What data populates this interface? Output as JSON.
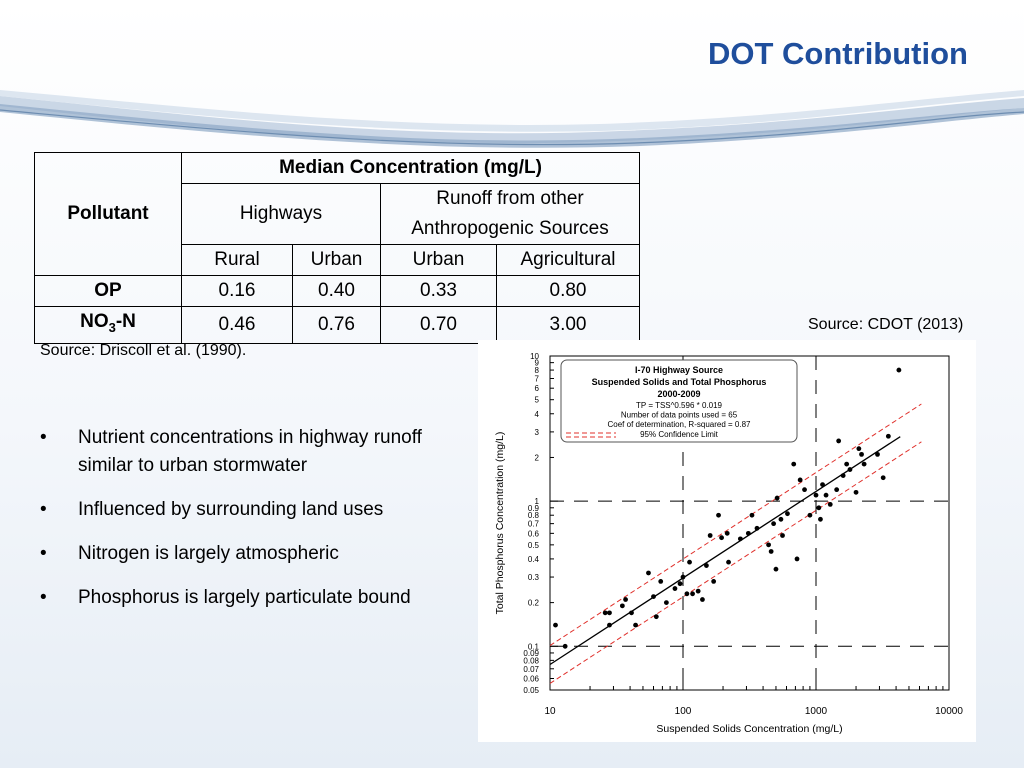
{
  "slide": {
    "title": "DOT Contribution",
    "source_right": "Source: CDOT (2013)",
    "source_left": "Source: Driscoll et al. (1990)."
  },
  "table": {
    "pollutant_header": "Pollutant",
    "median_header": "Median Concentration (mg/L)",
    "highways_header": "Highways",
    "runoff_header_line1": "Runoff from other",
    "runoff_header_line2": "Anthropogenic Sources",
    "sub_headers": [
      "Rural",
      "Urban",
      "Urban",
      "Agricultural"
    ],
    "rows": [
      {
        "pollutant": "OP",
        "values": [
          "0.16",
          "0.40",
          "0.33",
          "0.80"
        ]
      },
      {
        "pollutant_main": "NO",
        "pollutant_sub": "3",
        "pollutant_tail": "-N",
        "values": [
          "0.46",
          "0.76",
          "0.70",
          "3.00"
        ]
      }
    ]
  },
  "bullets": {
    "marker": "•",
    "items": [
      "Nutrient concentrations in highway runoff similar to urban stormwater",
      "Influenced by surrounding land uses",
      "Nitrogen is largely atmospheric",
      "Phosphorus is largely particulate bound"
    ]
  },
  "chart_data": {
    "type": "scatter",
    "title": "I-70 Highway Source",
    "subtitle": "Suspended Solids and Total Phosphorus",
    "period": "2000-2009",
    "legend_lines": [
      "TP = TSS^0.596 * 0.019",
      "Number of data points used = 65",
      "Coef of determination, R-squared = 0.87",
      "95% Confidence Limit"
    ],
    "xlabel": "Suspended Solids Concentration (mg/L)",
    "ylabel": "Total Phosphorus Concentration (mg/L)",
    "x_scale": "log",
    "y_scale": "log",
    "xlim": [
      10,
      10000
    ],
    "ylim": [
      0.05,
      10
    ],
    "x_ticks": [
      "10",
      "100",
      "1000",
      "10000"
    ],
    "y_ticks": [
      {
        "v": 0.05,
        "label": "0.05"
      },
      {
        "v": 0.06,
        "label": "0.06"
      },
      {
        "v": 0.07,
        "label": "0.07"
      },
      {
        "v": 0.08,
        "label": "0.08"
      },
      {
        "v": 0.09,
        "label": "0.09"
      },
      {
        "v": 0.1,
        "label": "0.1"
      },
      {
        "v": 0.2,
        "label": "0.2"
      },
      {
        "v": 0.3,
        "label": "0.3"
      },
      {
        "v": 0.4,
        "label": "0.4"
      },
      {
        "v": 0.5,
        "label": "0.5"
      },
      {
        "v": 0.6,
        "label": "0.6"
      },
      {
        "v": 0.7,
        "label": "0.7"
      },
      {
        "v": 0.8,
        "label": "0.8"
      },
      {
        "v": 0.9,
        "label": "0.9"
      },
      {
        "v": 1,
        "label": "1"
      },
      {
        "v": 2,
        "label": "2"
      },
      {
        "v": 3,
        "label": "3"
      },
      {
        "v": 4,
        "label": "4"
      },
      {
        "v": 5,
        "label": "5"
      },
      {
        "v": 6,
        "label": "6"
      },
      {
        "v": 7,
        "label": "7"
      },
      {
        "v": 8,
        "label": "8"
      },
      {
        "v": 9,
        "label": "9"
      },
      {
        "v": 10,
        "label": "10"
      }
    ],
    "regression": {
      "coef": 0.019,
      "exponent": 0.596
    },
    "confidence_factor": 1.35,
    "points": [
      [
        11,
        0.14
      ],
      [
        13,
        0.1
      ],
      [
        26,
        0.17
      ],
      [
        28,
        0.17
      ],
      [
        28,
        0.14
      ],
      [
        35,
        0.19
      ],
      [
        37,
        0.21
      ],
      [
        41,
        0.17
      ],
      [
        44,
        0.14
      ],
      [
        55,
        0.32
      ],
      [
        60,
        0.22
      ],
      [
        63,
        0.16
      ],
      [
        68,
        0.28
      ],
      [
        75,
        0.2
      ],
      [
        87,
        0.25
      ],
      [
        95,
        0.27
      ],
      [
        100,
        0.3
      ],
      [
        107,
        0.23
      ],
      [
        112,
        0.38
      ],
      [
        118,
        0.23
      ],
      [
        130,
        0.24
      ],
      [
        140,
        0.21
      ],
      [
        150,
        0.36
      ],
      [
        160,
        0.58
      ],
      [
        170,
        0.28
      ],
      [
        185,
        0.8
      ],
      [
        195,
        0.56
      ],
      [
        215,
        0.6
      ],
      [
        220,
        0.38
      ],
      [
        270,
        0.55
      ],
      [
        310,
        0.6
      ],
      [
        330,
        0.8
      ],
      [
        360,
        0.65
      ],
      [
        440,
        0.5
      ],
      [
        460,
        0.45
      ],
      [
        480,
        0.7
      ],
      [
        500,
        0.34
      ],
      [
        510,
        1.05
      ],
      [
        545,
        0.75
      ],
      [
        560,
        0.58
      ],
      [
        610,
        0.82
      ],
      [
        680,
        1.8
      ],
      [
        720,
        0.4
      ],
      [
        760,
        1.4
      ],
      [
        820,
        1.2
      ],
      [
        900,
        0.8
      ],
      [
        1000,
        1.1
      ],
      [
        1050,
        0.9
      ],
      [
        1080,
        0.75
      ],
      [
        1120,
        1.3
      ],
      [
        1190,
        1.1
      ],
      [
        1280,
        0.95
      ],
      [
        1430,
        1.2
      ],
      [
        1480,
        2.6
      ],
      [
        1600,
        1.5
      ],
      [
        1700,
        1.8
      ],
      [
        1800,
        1.65
      ],
      [
        2000,
        1.15
      ],
      [
        2100,
        2.3
      ],
      [
        2200,
        2.1
      ],
      [
        2300,
        1.8
      ],
      [
        2900,
        2.1
      ],
      [
        3200,
        1.45
      ],
      [
        3500,
        2.8
      ],
      [
        4200,
        8.0
      ]
    ]
  }
}
